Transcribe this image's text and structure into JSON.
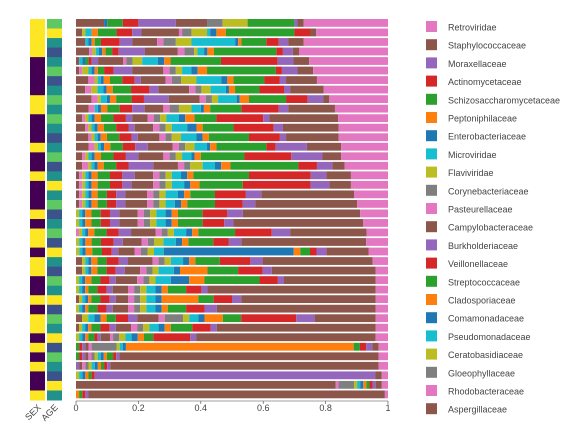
{
  "chart_data": {
    "type": "bar",
    "orientation": "horizontal",
    "stacked": true,
    "xlim": [
      0,
      1
    ],
    "x_ticks": [
      "0",
      "0.2",
      "0.4",
      "0.6",
      "0.8",
      "1"
    ],
    "x_tick_values": [
      0,
      0.2,
      0.4,
      0.6,
      0.8,
      1
    ],
    "annotation_tracks": [
      "SEX",
      "AGE"
    ],
    "families": [
      "Retroviridae",
      "Staphylococcaceae",
      "Moraxellaceae",
      "Actinomycetaceae",
      "Schizosaccharomycetaceae",
      "Peptoniphilaceae",
      "Enterobacteriaceae",
      "Microviridae",
      "Flaviviridae",
      "Corynebacteriaceae",
      "Pasteurellaceae",
      "Campylobacteraceae",
      "Burkholderiaceae",
      "Veillonellaceae",
      "Streptococcaceae",
      "Cladosporiaceae",
      "Comamonadaceae",
      "Pseudomonadaceae",
      "Ceratobasidiaceae",
      "Gloeophyllaceae",
      "Rhodobacteraceae",
      "Aspergillaceae"
    ],
    "colors": [
      "#e377c2",
      "#8c564b",
      "#9467bd",
      "#d62728",
      "#2ca02c",
      "#ff7f0e",
      "#1f77b4",
      "#17becf",
      "#bcbd22",
      "#7f7f7f",
      "#e377c2",
      "#8c564b",
      "#9467bd",
      "#d62728",
      "#2ca02c",
      "#ff7f0e",
      "#1f77b4",
      "#17becf",
      "#bcbd22",
      "#7f7f7f",
      "#e377c2",
      "#8c564b"
    ],
    "sex_colors": [
      "#fde725",
      "#440154"
    ],
    "age_colors": [
      "#440154",
      "#3b528b",
      "#21918c",
      "#5ec962",
      "#fde725"
    ],
    "samples": [
      {
        "sex": 0,
        "age": 3,
        "vals": [
          0.27,
          0.02,
          0.01,
          0,
          0.15,
          0,
          0,
          0,
          0.08,
          0.05,
          0,
          0.1,
          0.12,
          0.05,
          0.05,
          0,
          0.01,
          0,
          0,
          0,
          0,
          0.09
        ]
      },
      {
        "sex": 0,
        "age": 4,
        "vals": [
          0.23,
          0.02,
          0,
          0.05,
          0.22,
          0.03,
          0.02,
          0.01,
          0.05,
          0.03,
          0.01,
          0.12,
          0.03,
          0.05,
          0.06,
          0.02,
          0,
          0.02,
          0.01,
          0,
          0,
          0.02
        ]
      },
      {
        "sex": 0,
        "age": 2,
        "vals": [
          0.27,
          0.05,
          0.03,
          0.04,
          0.08,
          0.01,
          0.01,
          0.14,
          0.05,
          0.04,
          0.02,
          0.08,
          0.04,
          0.06,
          0.02,
          0.01,
          0.01,
          0.01,
          0,
          0,
          0,
          0.03
        ]
      },
      {
        "sex": 0,
        "age": 1,
        "vals": [
          0.27,
          0.02,
          0.03,
          0.02,
          0.19,
          0.02,
          0.01,
          0.02,
          0.01,
          0.03,
          0.02,
          0.1,
          0.08,
          0.02,
          0.02,
          0.01,
          0.01,
          0.01,
          0.01,
          0,
          0.01,
          0.04
        ]
      },
      {
        "sex": 1,
        "age": 2,
        "vals": [
          0.25,
          0.05,
          0.05,
          0.18,
          0.16,
          0.02,
          0.02,
          0.05,
          0.03,
          0.02,
          0.01,
          0.08,
          0.02,
          0.01,
          0.01,
          0,
          0.01,
          0.01,
          0,
          0,
          0,
          0.01
        ]
      },
      {
        "sex": 1,
        "age": 3,
        "vals": [
          0.24,
          0.05,
          0.05,
          0.02,
          0.22,
          0.03,
          0.02,
          0.03,
          0.02,
          0.02,
          0.02,
          0.1,
          0.06,
          0.03,
          0.02,
          0.01,
          0.01,
          0.01,
          0.02,
          0,
          0.01,
          0.01
        ]
      },
      {
        "sex": 1,
        "age": 1,
        "vals": [
          0.23,
          0.1,
          0.02,
          0.05,
          0.1,
          0.02,
          0.02,
          0.08,
          0.05,
          0.03,
          0.02,
          0.08,
          0.02,
          0.04,
          0.04,
          0.02,
          0.01,
          0.01,
          0.01,
          0,
          0.02,
          0.04
        ]
      },
      {
        "sex": 1,
        "age": 2,
        "vals": [
          0.21,
          0.11,
          0.02,
          0.08,
          0.08,
          0.02,
          0.01,
          0.05,
          0.03,
          0.02,
          0.02,
          0.1,
          0.03,
          0.06,
          0.06,
          0.02,
          0.01,
          0.02,
          0.02,
          0,
          0.02,
          0.03
        ]
      },
      {
        "sex": 0,
        "age": 3,
        "vals": [
          0.19,
          0.02,
          0.05,
          0.07,
          0.12,
          0.03,
          0.01,
          0.06,
          0.02,
          0.02,
          0.02,
          0.1,
          0.08,
          0.04,
          0.05,
          0.02,
          0.01,
          0.02,
          0.01,
          0,
          0.02,
          0.05
        ]
      },
      {
        "sex": 0,
        "age": 2,
        "vals": [
          0.17,
          0.15,
          0.03,
          0.12,
          0.1,
          0.02,
          0.01,
          0.03,
          0.04,
          0.03,
          0.02,
          0.06,
          0.04,
          0.04,
          0.04,
          0.02,
          0.01,
          0.01,
          0,
          0,
          0.02,
          0.04
        ]
      },
      {
        "sex": 1,
        "age": 3,
        "vals": [
          0.16,
          0.22,
          0.02,
          0.15,
          0.07,
          0.03,
          0.02,
          0.04,
          0.02,
          0.02,
          0.02,
          0.05,
          0.02,
          0.04,
          0.04,
          0.02,
          0.01,
          0.01,
          0.01,
          0,
          0.01,
          0.02
        ]
      },
      {
        "sex": 1,
        "age": 2,
        "vals": [
          0.16,
          0.18,
          0.03,
          0.13,
          0.1,
          0.02,
          0.03,
          0.05,
          0.02,
          0.02,
          0.02,
          0.06,
          0.02,
          0.04,
          0.04,
          0.02,
          0.01,
          0.01,
          0.01,
          0,
          0.01,
          0.03
        ]
      },
      {
        "sex": 1,
        "age": 1,
        "vals": [
          0.16,
          0.17,
          0.02,
          0.1,
          0.13,
          0.02,
          0.02,
          0.05,
          0.03,
          0.02,
          0.02,
          0.07,
          0.02,
          0.04,
          0.04,
          0.02,
          0.01,
          0.01,
          0.01,
          0,
          0.01,
          0.04
        ]
      },
      {
        "sex": 0,
        "age": 2,
        "vals": [
          0.15,
          0.11,
          0.1,
          0.03,
          0.16,
          0.02,
          0.01,
          0.04,
          0.03,
          0.02,
          0.02,
          0.08,
          0.04,
          0.04,
          0.04,
          0.02,
          0.01,
          0.01,
          0.01,
          0,
          0.02,
          0.04
        ]
      },
      {
        "sex": 1,
        "age": 3,
        "vals": [
          0.15,
          0.06,
          0.1,
          0.15,
          0.14,
          0.02,
          0.01,
          0.03,
          0.02,
          0.02,
          0.02,
          0.08,
          0.04,
          0.04,
          0.04,
          0.02,
          0.01,
          0.01,
          0.01,
          0,
          0.01,
          0.02
        ]
      },
      {
        "sex": 1,
        "age": 1,
        "vals": [
          0.14,
          0.04,
          0.05,
          0.06,
          0.22,
          0.03,
          0.02,
          0.04,
          0.04,
          0.02,
          0.02,
          0.08,
          0.08,
          0.04,
          0.04,
          0.02,
          0.01,
          0.01,
          0.01,
          0,
          0.02,
          0.02
        ]
      },
      {
        "sex": 0,
        "age": 2,
        "vals": [
          0.12,
          0.08,
          0.05,
          0.2,
          0.18,
          0.02,
          0.02,
          0.03,
          0.02,
          0.02,
          0.02,
          0.06,
          0.04,
          0.04,
          0.04,
          0.02,
          0.01,
          0.01,
          0.01,
          0,
          0.01,
          0.01
        ]
      },
      {
        "sex": 1,
        "age": 4,
        "vals": [
          0.12,
          0.07,
          0.06,
          0.22,
          0.14,
          0.03,
          0.02,
          0.04,
          0.02,
          0.02,
          0.02,
          0.07,
          0.03,
          0.04,
          0.04,
          0.02,
          0.01,
          0.01,
          0.01,
          0,
          0.01,
          0.01
        ]
      },
      {
        "sex": 1,
        "age": 2,
        "vals": [
          0.11,
          0.3,
          0.05,
          0.1,
          0.08,
          0.02,
          0.02,
          0.04,
          0.02,
          0.02,
          0.02,
          0.07,
          0.03,
          0.03,
          0.03,
          0.02,
          0.01,
          0.01,
          0.01,
          0,
          0.01,
          0.01
        ]
      },
      {
        "sex": 1,
        "age": 3,
        "vals": [
          0.1,
          0.33,
          0.04,
          0.09,
          0.09,
          0.02,
          0.02,
          0.03,
          0.02,
          0.02,
          0.02,
          0.07,
          0.03,
          0.03,
          0.03,
          0.02,
          0.01,
          0.01,
          0.01,
          0,
          0.01,
          0.01
        ]
      },
      {
        "sex": 0,
        "age": 1,
        "vals": [
          0.09,
          0.38,
          0.05,
          0.08,
          0.08,
          0.02,
          0.02,
          0.03,
          0.02,
          0.02,
          0.02,
          0.06,
          0.03,
          0.03,
          0.03,
          0.02,
          0.01,
          0.01,
          0.01,
          0,
          0,
          0
        ]
      },
      {
        "sex": 1,
        "age": 2,
        "vals": [
          0.08,
          0.42,
          0.03,
          0.07,
          0.08,
          0.02,
          0.02,
          0.03,
          0.02,
          0.02,
          0.02,
          0.06,
          0.03,
          0.03,
          0.03,
          0.02,
          0.01,
          0.01,
          0.01,
          0,
          0,
          0
        ]
      },
      {
        "sex": 0,
        "age": 3,
        "vals": [
          0.07,
          0.25,
          0.06,
          0.12,
          0.12,
          0.02,
          0.02,
          0.04,
          0.02,
          0.02,
          0.02,
          0.08,
          0.04,
          0.04,
          0.04,
          0.02,
          0.01,
          0.01,
          0.01,
          0,
          0.01,
          0
        ]
      },
      {
        "sex": 0,
        "age": 1,
        "vals": [
          0.07,
          0.4,
          0.04,
          0.05,
          0.08,
          0.02,
          0.02,
          0.04,
          0.03,
          0.02,
          0.02,
          0.06,
          0.03,
          0.04,
          0.03,
          0.02,
          0.01,
          0.01,
          0.01,
          0,
          0,
          0
        ]
      },
      {
        "sex": 1,
        "age": 4,
        "vals": [
          0.06,
          0.13,
          0.03,
          0.02,
          0.03,
          0.02,
          0.4,
          0.03,
          0.02,
          0.02,
          0.02,
          0.05,
          0.02,
          0.03,
          0.03,
          0.02,
          0.01,
          0.01,
          0.01,
          0,
          0,
          0
        ]
      },
      {
        "sex": 0,
        "age": 2,
        "vals": [
          0.05,
          0.36,
          0.04,
          0.1,
          0.08,
          0.02,
          0.02,
          0.04,
          0.02,
          0.02,
          0.02,
          0.08,
          0.03,
          0.04,
          0.03,
          0.02,
          0.01,
          0.01,
          0.01,
          0,
          0,
          0.02
        ]
      },
      {
        "sex": 0,
        "age": 1,
        "vals": [
          0.04,
          0.34,
          0.03,
          0.08,
          0.1,
          0.09,
          0.02,
          0.05,
          0.02,
          0.02,
          0.02,
          0.05,
          0.03,
          0.03,
          0.03,
          0.02,
          0.01,
          0.01,
          0.01,
          0,
          0,
          0.02
        ]
      },
      {
        "sex": 1,
        "age": 3,
        "vals": [
          0.04,
          0.3,
          0.02,
          0.06,
          0.18,
          0.05,
          0.06,
          0.05,
          0.02,
          0.02,
          0.02,
          0.07,
          0.02,
          0.03,
          0.03,
          0.02,
          0.01,
          0.01,
          0.01,
          0,
          0,
          0
        ]
      },
      {
        "sex": 1,
        "age": 2,
        "vals": [
          0.04,
          0.55,
          0.02,
          0.05,
          0.06,
          0.02,
          0.02,
          0.03,
          0.02,
          0.02,
          0.02,
          0.05,
          0.02,
          0.03,
          0.03,
          0.01,
          0.01,
          0.01,
          0.01,
          0,
          0,
          0
        ]
      },
      {
        "sex": 0,
        "age": 4,
        "vals": [
          0.04,
          0.44,
          0.03,
          0.06,
          0.05,
          0.12,
          0.02,
          0.03,
          0.02,
          0.02,
          0.02,
          0.04,
          0.02,
          0.03,
          0.03,
          0.01,
          0.01,
          0.01,
          0.01,
          0,
          0,
          0.01
        ]
      },
      {
        "sex": 1,
        "age": 1,
        "vals": [
          0.04,
          0.52,
          0.04,
          0.06,
          0.06,
          0.02,
          0.02,
          0.03,
          0.02,
          0.02,
          0.02,
          0.05,
          0.02,
          0.03,
          0.03,
          0.01,
          0.01,
          0.01,
          0.01,
          0,
          0,
          0
        ]
      },
      {
        "sex": 0,
        "age": 3,
        "vals": [
          0.04,
          0.2,
          0.06,
          0.18,
          0.06,
          0.06,
          0.02,
          0.03,
          0.02,
          0.06,
          0.02,
          0.07,
          0.03,
          0.04,
          0.03,
          0.02,
          0.02,
          0.02,
          0.02,
          0,
          0,
          0.02
        ]
      },
      {
        "sex": 0,
        "age": 2,
        "vals": [
          0.04,
          0.52,
          0.02,
          0.06,
          0.07,
          0.02,
          0.02,
          0.03,
          0.02,
          0.02,
          0.02,
          0.05,
          0.02,
          0.03,
          0.03,
          0.01,
          0.01,
          0.01,
          0.01,
          0,
          0,
          0.01
        ]
      },
      {
        "sex": 1,
        "age": 4,
        "vals": [
          0.04,
          0.58,
          0.02,
          0.12,
          0.03,
          0.02,
          0.02,
          0.02,
          0.02,
          0.02,
          0.01,
          0.03,
          0.01,
          0.01,
          0.02,
          0.01,
          0.01,
          0.01,
          0.01,
          0,
          0,
          0
        ]
      },
      {
        "sex": 0,
        "age": 1,
        "vals": [
          0.03,
          0.02,
          0.02,
          0.02,
          0.02,
          0.73,
          0.01,
          0.01,
          0.01,
          0.08,
          0.01,
          0.01,
          0.01,
          0.01,
          0.01,
          0,
          0,
          0,
          0,
          0,
          0,
          0
        ]
      },
      {
        "sex": 1,
        "age": 3,
        "vals": [
          0.03,
          0.84,
          0.01,
          0.01,
          0.02,
          0.01,
          0.01,
          0.01,
          0.01,
          0.01,
          0.01,
          0.01,
          0.01,
          0.01,
          0.01,
          0,
          0,
          0,
          0,
          0,
          0,
          0
        ]
      },
      {
        "sex": 0,
        "age": 2,
        "vals": [
          0.03,
          0.86,
          0.01,
          0.01,
          0.01,
          0.01,
          0.01,
          0.01,
          0.01,
          0.01,
          0.01,
          0.01,
          0.01,
          0,
          0,
          0,
          0,
          0,
          0,
          0,
          0,
          0
        ]
      },
      {
        "sex": 1,
        "age": 1,
        "vals": [
          0.02,
          0.02,
          0.9,
          0.01,
          0.01,
          0.01,
          0.01,
          0.01,
          0.01,
          0,
          0,
          0,
          0,
          0,
          0,
          0,
          0,
          0,
          0,
          0,
          0,
          0
        ]
      },
      {
        "sex": 1,
        "age": 4,
        "vals": [
          0.02,
          0.02,
          0.01,
          0.01,
          0.01,
          0.01,
          0.01,
          0.01,
          0.01,
          0.05,
          0.01,
          0.84,
          0,
          0,
          0,
          0,
          0,
          0,
          0,
          0,
          0,
          0
        ]
      },
      {
        "sex": 0,
        "age": 2,
        "vals": [
          0.01,
          0.95,
          0.01,
          0.01,
          0.01,
          0.01,
          0,
          0,
          0,
          0,
          0,
          0,
          0,
          0,
          0,
          0,
          0,
          0,
          0,
          0,
          0,
          0
        ]
      }
    ]
  }
}
